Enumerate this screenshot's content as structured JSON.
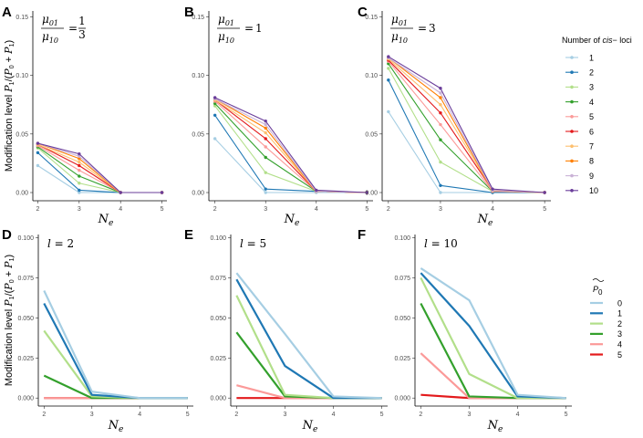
{
  "chart_data": [
    {
      "panel": "A",
      "type": "line",
      "annotation": {
        "kind": "ratio",
        "num": "μ01",
        "den": "μ10",
        "op": "=",
        "num_val": "1",
        "den_val": "3"
      },
      "ylabel": "Modification level P1/(P0 + P1)",
      "xlabel": "Ne",
      "x": [
        2,
        3,
        4,
        5
      ],
      "xticks": [
        "2",
        "3",
        "4",
        "5"
      ],
      "ylim": [
        -0.007,
        0.155
      ],
      "yticks": [
        0.0,
        0.05,
        0.1,
        0.15
      ],
      "ytick_labels": [
        "0.00",
        "0.05",
        "0.10",
        "0.15"
      ],
      "markers": true,
      "series": [
        {
          "name": "1",
          "values": [
            0.023,
            0.0,
            0.0,
            0.0
          ]
        },
        {
          "name": "2",
          "values": [
            0.034,
            0.002,
            0.0,
            0.0
          ]
        },
        {
          "name": "3",
          "values": [
            0.038,
            0.008,
            0.0,
            0.0
          ]
        },
        {
          "name": "4",
          "values": [
            0.039,
            0.014,
            0.0,
            0.0
          ]
        },
        {
          "name": "5",
          "values": [
            0.04,
            0.019,
            0.0,
            0.0
          ]
        },
        {
          "name": "6",
          "values": [
            0.041,
            0.023,
            0.0,
            0.0
          ]
        },
        {
          "name": "7",
          "values": [
            0.041,
            0.026,
            0.0,
            0.0
          ]
        },
        {
          "name": "8",
          "values": [
            0.042,
            0.029,
            0.0,
            0.0
          ]
        },
        {
          "name": "9",
          "values": [
            0.042,
            0.031,
            0.0,
            0.0
          ]
        },
        {
          "name": "10",
          "values": [
            0.042,
            0.033,
            0.0,
            0.0
          ]
        }
      ]
    },
    {
      "panel": "B",
      "type": "line",
      "annotation": {
        "kind": "ratio",
        "num": "μ01",
        "den": "μ10",
        "op": "=",
        "value": "1"
      },
      "ylabel": "",
      "xlabel": "Ne",
      "x": [
        2,
        3,
        4,
        5
      ],
      "xticks": [
        "2",
        "3",
        "4",
        "5"
      ],
      "ylim": [
        -0.007,
        0.155
      ],
      "yticks": [
        0.0,
        0.05,
        0.1,
        0.15
      ],
      "ytick_labels": [
        "0.00",
        "0.05",
        "0.10",
        "0.15"
      ],
      "markers": true,
      "series": [
        {
          "name": "1",
          "values": [
            0.046,
            0.0,
            0.0,
            0.0
          ]
        },
        {
          "name": "2",
          "values": [
            0.066,
            0.003,
            0.001,
            0.0
          ]
        },
        {
          "name": "3",
          "values": [
            0.074,
            0.017,
            0.001,
            0.0
          ]
        },
        {
          "name": "4",
          "values": [
            0.076,
            0.03,
            0.001,
            0.0
          ]
        },
        {
          "name": "5",
          "values": [
            0.078,
            0.039,
            0.001,
            0.0
          ]
        },
        {
          "name": "6",
          "values": [
            0.079,
            0.046,
            0.001,
            0.0
          ]
        },
        {
          "name": "7",
          "values": [
            0.079,
            0.051,
            0.001,
            0.0
          ]
        },
        {
          "name": "8",
          "values": [
            0.08,
            0.055,
            0.001,
            0.0
          ]
        },
        {
          "name": "9",
          "values": [
            0.08,
            0.058,
            0.001,
            0.0
          ]
        },
        {
          "name": "10",
          "values": [
            0.081,
            0.061,
            0.002,
            0.0
          ]
        }
      ]
    },
    {
      "panel": "C",
      "type": "line",
      "annotation": {
        "kind": "ratio",
        "num": "μ01",
        "den": "μ10",
        "op": "=",
        "value": "3"
      },
      "ylabel": "",
      "xlabel": "Ne",
      "x": [
        2,
        3,
        4,
        5
      ],
      "xticks": [
        "2",
        "3",
        "4",
        "5"
      ],
      "ylim": [
        -0.007,
        0.155
      ],
      "yticks": [
        0.0,
        0.05,
        0.1,
        0.15
      ],
      "ytick_labels": [
        "0.00",
        "0.05",
        "0.10",
        "0.15"
      ],
      "markers": true,
      "series": [
        {
          "name": "1",
          "values": [
            0.069,
            0.0,
            0.0,
            0.0
          ]
        },
        {
          "name": "2",
          "values": [
            0.096,
            0.006,
            0.0,
            0.0
          ]
        },
        {
          "name": "3",
          "values": [
            0.106,
            0.026,
            0.001,
            0.0
          ]
        },
        {
          "name": "4",
          "values": [
            0.11,
            0.045,
            0.001,
            0.0
          ]
        },
        {
          "name": "5",
          "values": [
            0.112,
            0.058,
            0.001,
            0.0
          ]
        },
        {
          "name": "6",
          "values": [
            0.113,
            0.068,
            0.002,
            0.0
          ]
        },
        {
          "name": "7",
          "values": [
            0.114,
            0.075,
            0.002,
            0.0
          ]
        },
        {
          "name": "8",
          "values": [
            0.115,
            0.081,
            0.002,
            0.0
          ]
        },
        {
          "name": "9",
          "values": [
            0.115,
            0.085,
            0.002,
            0.0
          ]
        },
        {
          "name": "10",
          "values": [
            0.116,
            0.089,
            0.003,
            0.0
          ]
        }
      ]
    },
    {
      "panel": "D",
      "type": "line",
      "annotation": {
        "kind": "eq",
        "var": "l",
        "op": "=",
        "value": "2"
      },
      "ylabel": "Modification level P1/(P0 + P1)",
      "xlabel": "Ne",
      "x": [
        2,
        3,
        4,
        5
      ],
      "xticks": [
        "2",
        "3",
        "4",
        "5"
      ],
      "ylim": [
        -0.005,
        0.102
      ],
      "yticks": [
        0.0,
        0.025,
        0.05,
        0.075,
        0.1
      ],
      "ytick_labels": [
        "0.000",
        "0.025",
        "0.050",
        "0.075",
        "0.100"
      ],
      "markers": false,
      "series": [
        {
          "name": "0",
          "values": [
            0.067,
            0.004,
            0.0,
            0.0
          ]
        },
        {
          "name": "1",
          "values": [
            0.059,
            0.002,
            0.0,
            0.0
          ]
        },
        {
          "name": "2",
          "values": [
            0.042,
            0.001,
            0.0,
            0.0
          ]
        },
        {
          "name": "3",
          "values": [
            0.014,
            0.0,
            0.0,
            0.0
          ]
        },
        {
          "name": "4",
          "values": [
            0.0,
            0.0,
            0.0,
            0.0
          ]
        },
        {
          "name": "5",
          "values": [
            0.0,
            0.0,
            0.0,
            0.0
          ]
        }
      ]
    },
    {
      "panel": "E",
      "type": "line",
      "annotation": {
        "kind": "eq",
        "var": "l",
        "op": "=",
        "value": "5"
      },
      "ylabel": "",
      "xlabel": "Ne",
      "x": [
        2,
        3,
        4,
        5
      ],
      "xticks": [
        "2",
        "3",
        "4",
        "5"
      ],
      "ylim": [
        -0.005,
        0.102
      ],
      "yticks": [
        0.0,
        0.025,
        0.05,
        0.075,
        0.1
      ],
      "ytick_labels": [
        "0.000",
        "0.025",
        "0.050",
        "0.075",
        "0.100"
      ],
      "markers": false,
      "series": [
        {
          "name": "0",
          "values": [
            0.078,
            0.04,
            0.001,
            0.0
          ]
        },
        {
          "name": "1",
          "values": [
            0.074,
            0.02,
            0.0,
            0.0
          ]
        },
        {
          "name": "2",
          "values": [
            0.064,
            0.002,
            0.0,
            0.0
          ]
        },
        {
          "name": "3",
          "values": [
            0.041,
            0.001,
            0.0,
            0.0
          ]
        },
        {
          "name": "4",
          "values": [
            0.008,
            0.0,
            0.0,
            0.0
          ]
        },
        {
          "name": "5",
          "values": [
            0.0,
            0.0,
            0.0,
            0.0
          ]
        }
      ]
    },
    {
      "panel": "F",
      "type": "line",
      "annotation": {
        "kind": "eq",
        "var": "l",
        "op": "=",
        "value": "10"
      },
      "ylabel": "",
      "xlabel": "Ne",
      "x": [
        2,
        3,
        4,
        5
      ],
      "xticks": [
        "2",
        "3",
        "4",
        "5"
      ],
      "ylim": [
        -0.005,
        0.102
      ],
      "yticks": [
        0.0,
        0.025,
        0.05,
        0.075,
        0.1
      ],
      "ytick_labels": [
        "0.000",
        "0.025",
        "0.050",
        "0.075",
        "0.100"
      ],
      "markers": false,
      "series": [
        {
          "name": "0",
          "values": [
            0.081,
            0.061,
            0.002,
            0.0
          ]
        },
        {
          "name": "1",
          "values": [
            0.078,
            0.045,
            0.001,
            0.0
          ]
        },
        {
          "name": "2",
          "values": [
            0.075,
            0.015,
            0.0,
            0.0
          ]
        },
        {
          "name": "3",
          "values": [
            0.059,
            0.001,
            0.0,
            0.0
          ]
        },
        {
          "name": "4",
          "values": [
            0.028,
            0.0,
            0.0,
            0.0
          ]
        },
        {
          "name": "5",
          "values": [
            0.002,
            0.0,
            0.0,
            0.0
          ]
        }
      ]
    }
  ],
  "legends": {
    "top": {
      "title_prefix": "Number of ",
      "title_italic": "cis",
      "title_suffix": "− loci",
      "entries": [
        "1",
        "2",
        "3",
        "4",
        "5",
        "6",
        "7",
        "8",
        "9",
        "10"
      ],
      "colors": [
        "#a6cee3",
        "#1f78b4",
        "#b2df8a",
        "#33a02c",
        "#fb9a99",
        "#e31a1c",
        "#fdbf6f",
        "#ff7f00",
        "#cab2d6",
        "#6a3d9a"
      ]
    },
    "bottom": {
      "title_symbol": "P",
      "title_sub": "0",
      "entries": [
        "0",
        "1",
        "2",
        "3",
        "4",
        "5"
      ],
      "colors": [
        "#a6cee3",
        "#1f78b4",
        "#b2df8a",
        "#33a02c",
        "#fb9a99",
        "#e31a1c"
      ]
    }
  }
}
